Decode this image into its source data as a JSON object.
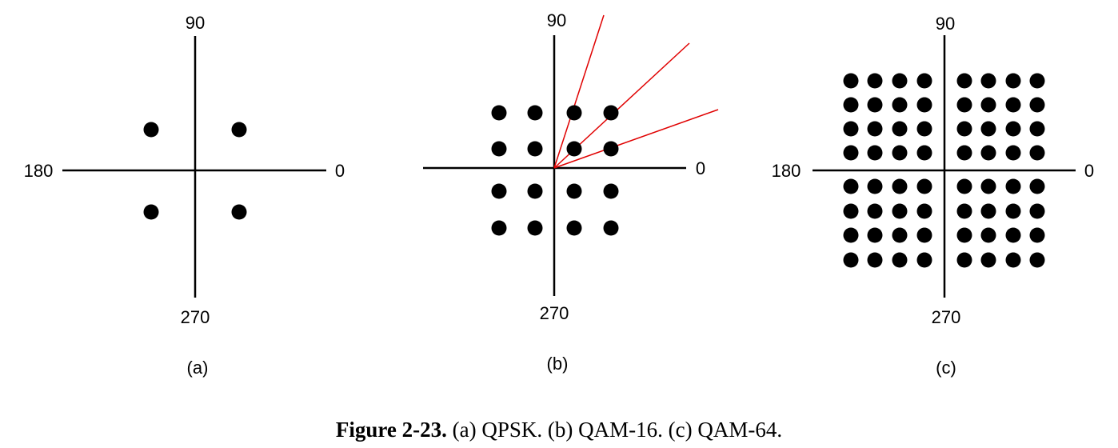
{
  "panels": [
    {
      "id": "a",
      "label": "(a)",
      "axis_labels": {
        "top": "90",
        "left": "180",
        "right": "0",
        "bottom": "270"
      },
      "grid": 2,
      "rays": false
    },
    {
      "id": "b",
      "label": "(b)",
      "axis_labels": {
        "top": "90",
        "left": "",
        "right": "0",
        "bottom": "270"
      },
      "grid": 4,
      "rays": true
    },
    {
      "id": "c",
      "label": "(c)",
      "axis_labels": {
        "top": "90",
        "left": "180",
        "right": "0",
        "bottom": "270"
      },
      "grid": 8,
      "rays": false
    }
  ],
  "caption": {
    "figure_number": "Figure 2-23.",
    "text": "(a) QPSK. (b) QAM-16. (c) QAM-64."
  },
  "colors": {
    "axis": "#000000",
    "dot": "#000000",
    "ray": "#e00000"
  }
}
